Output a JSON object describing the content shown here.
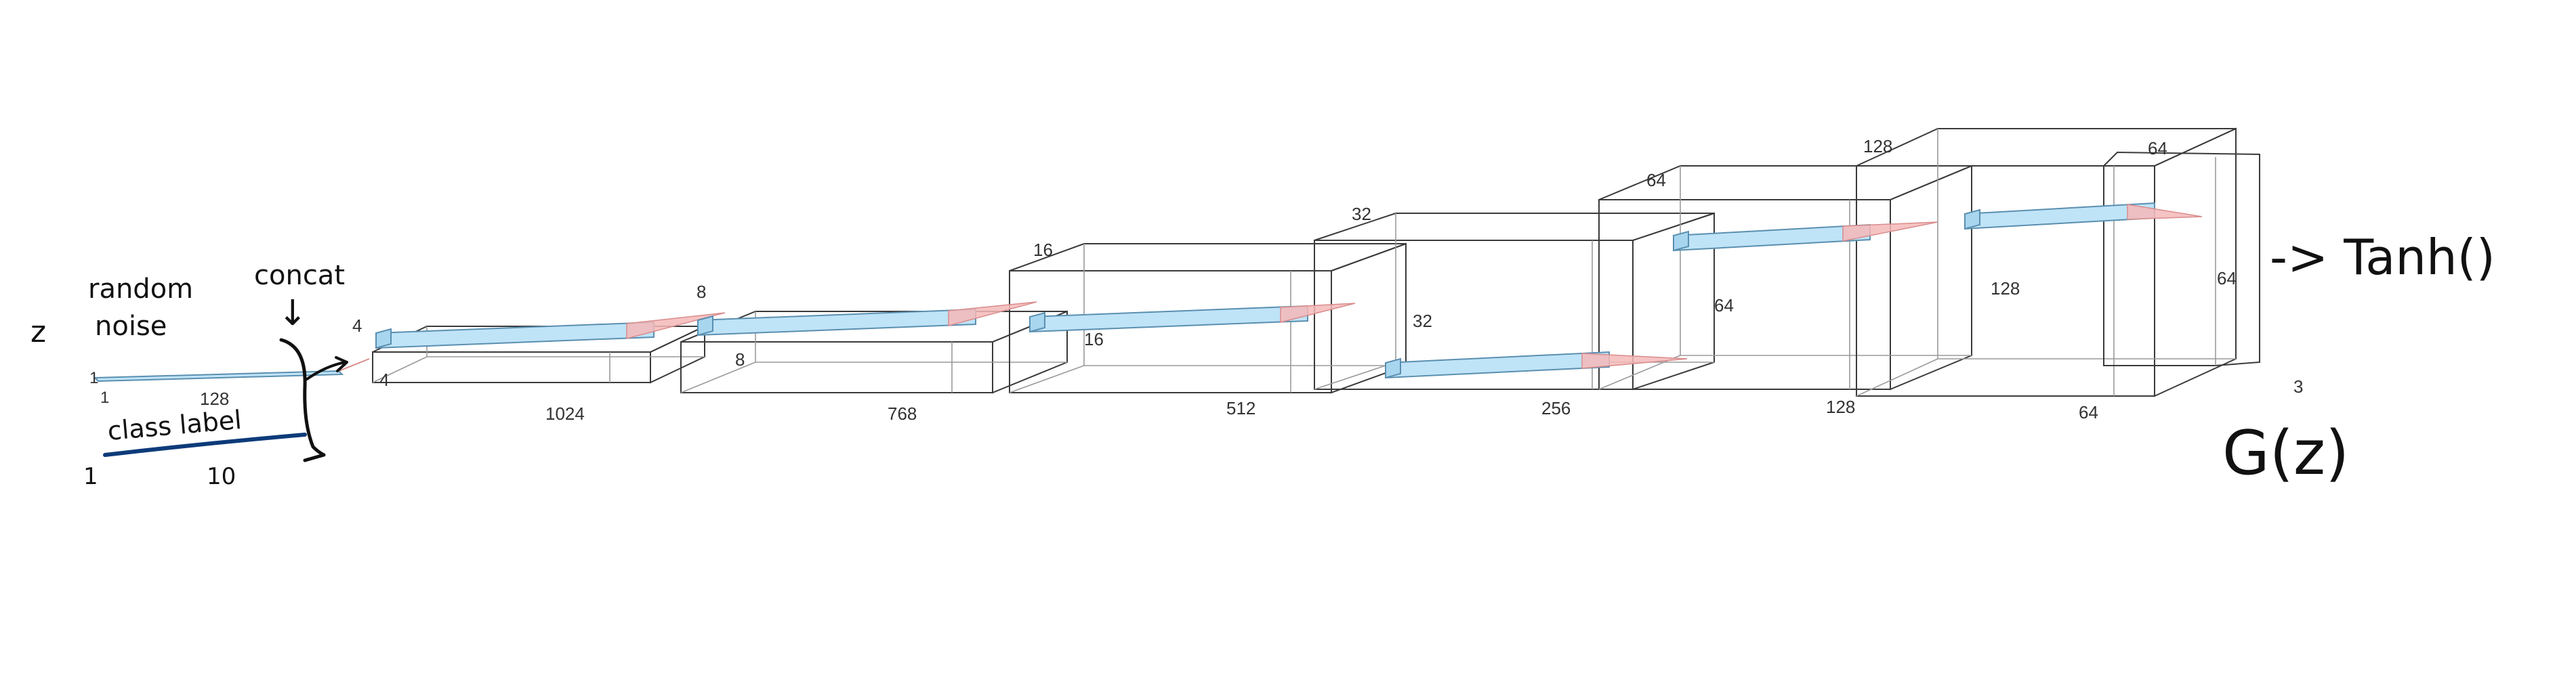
{
  "input": {
    "z_label": "z",
    "noise_label_line1": "random",
    "noise_label_line2": "noise",
    "noise_dims": [
      "1",
      "1",
      "128"
    ],
    "class_label": "class label",
    "class_dims": [
      "1",
      "10"
    ],
    "concat_label": "concat",
    "concat_arrow": "↓",
    "label_line_color": "#0d3b7a"
  },
  "blocks": [
    {
      "top": "4",
      "depth": "4",
      "front": "1024"
    },
    {
      "top": "8",
      "depth": "8",
      "front": "768"
    },
    {
      "top": "16",
      "depth": "16",
      "front": "512"
    },
    {
      "top": "32",
      "depth": "32",
      "front": "256"
    },
    {
      "top": "64",
      "depth": "64",
      "front": "128"
    },
    {
      "top": "128",
      "depth": "128",
      "front": "64"
    }
  ],
  "final_block": {
    "top": "64",
    "side": "64",
    "front": "3"
  },
  "output": {
    "activation": "-> Tanh()",
    "function_label": "G(z)"
  },
  "colors": {
    "kernel_fill": "#bfe3f7",
    "kernel_stroke": "#5a8fb0",
    "cone_fill": "#f4b8b8",
    "block_face": "#f2f2f2"
  }
}
